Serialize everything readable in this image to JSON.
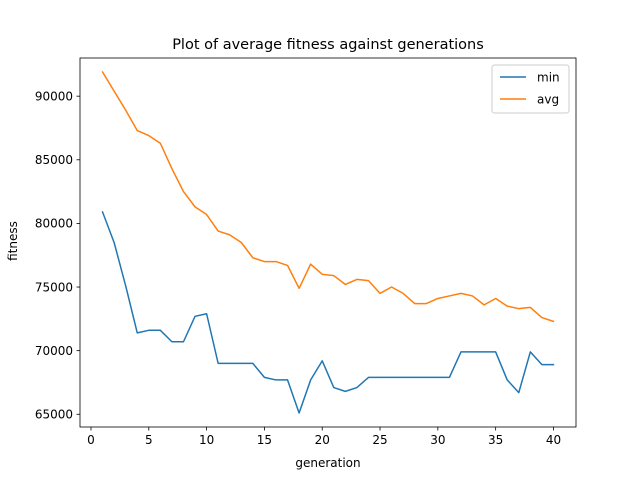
{
  "chart_data": {
    "type": "line",
    "title": "Plot of average fitness against generations",
    "xlabel": "generation",
    "ylabel": "fitness",
    "xlim": [
      -0.95,
      41.95
    ],
    "ylim": [
      64000,
      93000
    ],
    "xticks": [
      0,
      5,
      10,
      15,
      20,
      25,
      30,
      35,
      40
    ],
    "yticks": [
      65000,
      70000,
      75000,
      80000,
      85000,
      90000
    ],
    "grid": false,
    "legend_position": "top-right",
    "x": [
      1,
      2,
      3,
      4,
      5,
      6,
      7,
      8,
      9,
      10,
      11,
      12,
      13,
      14,
      15,
      16,
      17,
      18,
      19,
      20,
      21,
      22,
      23,
      24,
      25,
      26,
      27,
      28,
      29,
      30,
      31,
      32,
      33,
      34,
      35,
      36,
      37,
      38,
      39,
      40
    ],
    "series": [
      {
        "name": "min",
        "color": "#1f77b4",
        "values": [
          80900,
          78500,
          75100,
          71400,
          71600,
          71600,
          70700,
          70700,
          72700,
          72900,
          69000,
          69000,
          69000,
          69000,
          67900,
          67700,
          67700,
          65100,
          67700,
          69200,
          67100,
          66800,
          67100,
          67900,
          67900,
          67900,
          67900,
          67900,
          67900,
          67900,
          67900,
          69900,
          69900,
          69900,
          69900,
          67700,
          66700,
          69900,
          68900,
          68900
        ]
      },
      {
        "name": "avg",
        "color": "#ff7f0e",
        "values": [
          91900,
          90400,
          88900,
          87300,
          86900,
          86300,
          84300,
          82500,
          81300,
          80700,
          79400,
          79100,
          78500,
          77300,
          77000,
          77000,
          76700,
          74900,
          76800,
          76000,
          75900,
          75200,
          75600,
          75500,
          74500,
          75000,
          74500,
          73700,
          73700,
          74100,
          74300,
          74500,
          74300,
          73600,
          74100,
          73500,
          73300,
          73400,
          72600,
          72300
        ]
      }
    ]
  }
}
